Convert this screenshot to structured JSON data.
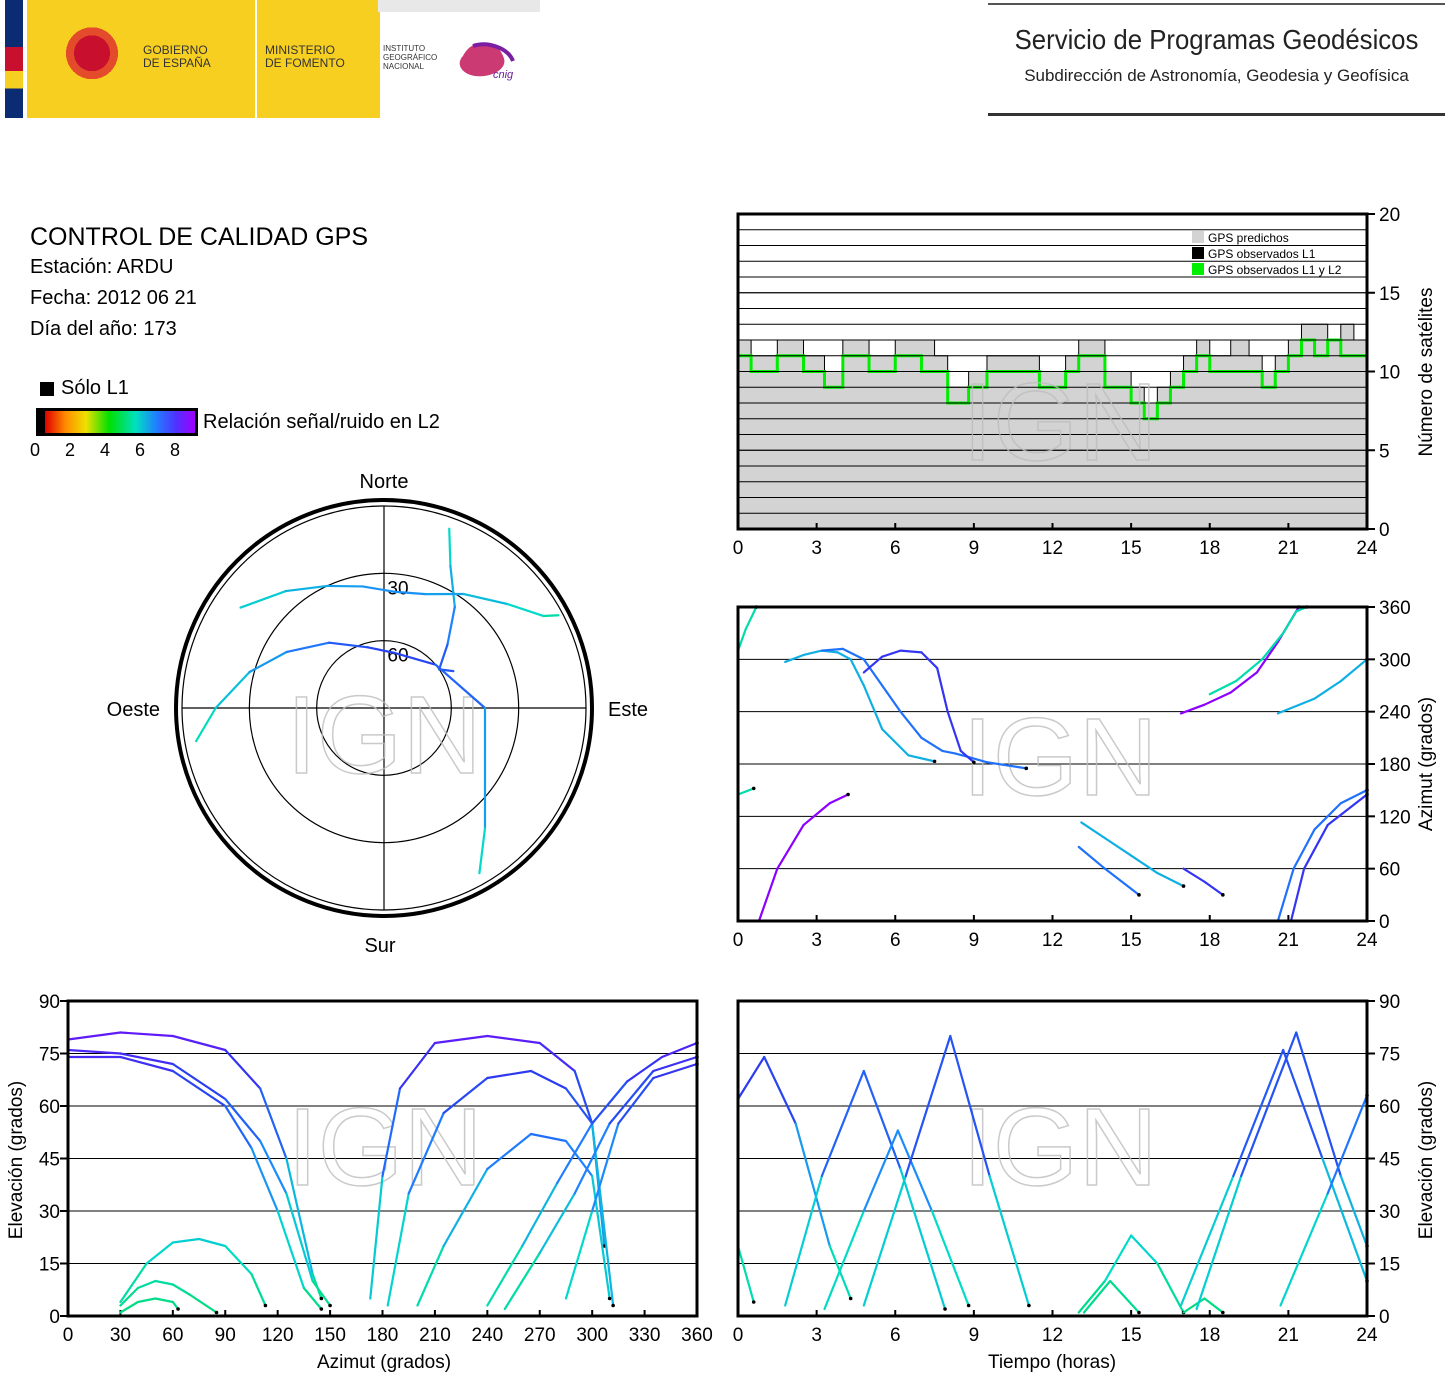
{
  "header": {
    "gov_line1": "GOBIERNO",
    "gov_line2": "DE ESPAÑA",
    "min_line1": "MINISTERIO",
    "min_line2": "DE FOMENTO",
    "ign_line1": "INSTITUTO",
    "ign_line2": "GEOGRÁFICO",
    "ign_line3": "NACIONAL",
    "cnig_logo": "cnig",
    "service_title": "Servicio de Programas Geodésicos",
    "service_subtitle": "Subdirección de Astronomía, Geodesia y Geofísica"
  },
  "info": {
    "title": "CONTROL DE CALIDAD GPS",
    "station": "Estación: ARDU",
    "date": "Fecha: 2012 06 21",
    "doy": "Día del año: 173",
    "legend_l1": "Sólo L1",
    "colorbar_label": "Relación señal/ruido en L2",
    "colorbar_ticks": [
      "0",
      "2",
      "4",
      "6",
      "8"
    ]
  },
  "watermark": "IGN",
  "colors": {
    "predicted": "#d3d3d3",
    "observed_l1": "#000000",
    "observed_l1l2": "#00ee00"
  },
  "chart_data": [
    {
      "type": "area",
      "name": "satellites",
      "x_ticks": [
        "0",
        "3",
        "6",
        "9",
        "12",
        "15",
        "18",
        "21",
        "24"
      ],
      "y_ticks": [
        "0",
        "5",
        "10",
        "15",
        "20"
      ],
      "ylabel": "Número de satélites",
      "xlim": [
        0,
        24
      ],
      "ylim": [
        0,
        20
      ],
      "legend": [
        "GPS predichos",
        "GPS observados L1",
        "GPS observados L1 y L2"
      ],
      "legend_position": "top-right",
      "series": [
        {
          "name": "GPS predichos",
          "x": [
            0,
            0.5,
            1.5,
            2.5,
            3.3,
            4,
            5,
            6,
            7,
            7.5,
            8,
            8.8,
            9.5,
            10.5,
            11.5,
            12.5,
            13,
            14,
            15,
            15.5,
            16,
            16.5,
            17,
            17.5,
            18,
            18.8,
            19.5,
            20,
            20.5,
            21,
            21.5,
            22,
            22.5,
            23,
            23.5,
            24
          ],
          "y": [
            12,
            11,
            12,
            11,
            10,
            12,
            11,
            12,
            12,
            11,
            9,
            10,
            11,
            11,
            10,
            11,
            12,
            10,
            9,
            8,
            9,
            10,
            11,
            12,
            11,
            12,
            11,
            10,
            11,
            12,
            13,
            13,
            12,
            13,
            12,
            12
          ]
        },
        {
          "name": "GPS observados L1 y L2",
          "x": [
            0,
            0.5,
            1.5,
            2.5,
            3.3,
            4,
            5,
            6,
            7,
            7.5,
            8,
            8.8,
            9.5,
            10.5,
            11.5,
            12.5,
            13,
            14,
            15,
            15.5,
            16,
            16.5,
            17,
            17.5,
            18,
            18.8,
            19.5,
            20,
            20.5,
            21,
            21.5,
            22,
            22.5,
            23,
            23.5,
            24
          ],
          "y": [
            11,
            10,
            11,
            10,
            9,
            11,
            10,
            11,
            10,
            10,
            8,
            9,
            10,
            10,
            9,
            10,
            11,
            9,
            8,
            7,
            8,
            9,
            10,
            11,
            10,
            10,
            10,
            9,
            10,
            11,
            12,
            11,
            12,
            11,
            11,
            11
          ]
        }
      ]
    },
    {
      "type": "scatter",
      "name": "skyplot",
      "direction_labels": [
        "Norte",
        "Este",
        "Sur",
        "Oeste"
      ],
      "ring_labels": [
        "30",
        "60"
      ],
      "series": [
        {
          "az": [
            20,
            25,
            35,
            45,
            55,
            62
          ],
          "el": [
            5,
            20,
            35,
            50,
            60,
            55
          ]
        },
        {
          "az": [
            305,
            320,
            335,
            350,
            5,
            20,
            35,
            50,
            60,
            62
          ],
          "el": [
            12,
            22,
            30,
            35,
            38,
            36,
            28,
            18,
            8,
            2
          ]
        },
        {
          "az": [
            260,
            270,
            285,
            300,
            320,
            345,
            10,
            50,
            90,
            140,
            150
          ],
          "el": [
            5,
            15,
            28,
            40,
            52,
            62,
            65,
            60,
            45,
            20,
            5
          ]
        }
      ]
    },
    {
      "type": "line",
      "name": "azimuth_vs_time",
      "x_ticks": [
        "0",
        "3",
        "6",
        "9",
        "12",
        "15",
        "18",
        "21",
        "24"
      ],
      "y_ticks": [
        "0",
        "60",
        "120",
        "180",
        "240",
        "300",
        "360"
      ],
      "ylabel": "Azimut (grados)",
      "xlim": [
        0,
        24
      ],
      "ylim": [
        0,
        360
      ],
      "series": [
        {
          "x": [
            0,
            0.3,
            0.7
          ],
          "y": [
            310,
            335,
            360
          ]
        },
        {
          "x": [
            1.8,
            2.5,
            3.2,
            3.8,
            4.3,
            4.8,
            5.5,
            6.5,
            7.5
          ],
          "y": [
            297,
            305,
            310,
            308,
            300,
            270,
            220,
            190,
            183
          ]
        },
        {
          "x": [
            3.2,
            4,
            4.8,
            5.5,
            6.2,
            7,
            7.8,
            8.3,
            8.8,
            9.5,
            11
          ],
          "y": [
            310,
            312,
            300,
            270,
            240,
            210,
            195,
            192,
            188,
            182,
            175
          ]
        },
        {
          "x": [
            4.8,
            5.5,
            6.2,
            7,
            7.6,
            8,
            8.5,
            9
          ],
          "y": [
            285,
            303,
            310,
            308,
            290,
            240,
            195,
            182
          ]
        },
        {
          "x": [
            0.8,
            1.5,
            2.5,
            3.5,
            4.2
          ],
          "y": [
            0,
            60,
            110,
            135,
            145
          ]
        },
        {
          "x": [
            0,
            0.6
          ],
          "y": [
            145,
            152
          ]
        },
        {
          "x": [
            13.1,
            14,
            15,
            16,
            17
          ],
          "y": [
            113,
            95,
            75,
            55,
            40
          ]
        },
        {
          "x": [
            13,
            14,
            15.3
          ],
          "y": [
            85,
            60,
            30
          ]
        },
        {
          "x": [
            17,
            17.8,
            18.5
          ],
          "y": [
            60,
            45,
            30
          ]
        },
        {
          "x": [
            16.9,
            17.8,
            18.8,
            19.8,
            20.6,
            21.4
          ],
          "y": [
            238,
            248,
            262,
            285,
            320,
            360
          ]
        },
        {
          "x": [
            18,
            19,
            20,
            20.8,
            21.3,
            21.7
          ],
          "y": [
            260,
            275,
            300,
            330,
            355,
            360
          ]
        },
        {
          "x": [
            20.6,
            22,
            23,
            24
          ],
          "y": [
            238,
            255,
            275,
            300
          ]
        },
        {
          "x": [
            20.6,
            21.2,
            22,
            23,
            24
          ],
          "y": [
            0,
            60,
            105,
            135,
            150
          ]
        },
        {
          "x": [
            21.1,
            21.6,
            22.5,
            24
          ],
          "y": [
            0,
            60,
            110,
            145
          ]
        }
      ]
    },
    {
      "type": "line",
      "name": "elevation_vs_azimuth",
      "x_ticks": [
        "0",
        "30",
        "60",
        "90",
        "120",
        "150",
        "180",
        "210",
        "240",
        "270",
        "300",
        "330",
        "360"
      ],
      "y_ticks": [
        "0",
        "15",
        "30",
        "45",
        "60",
        "75",
        "90"
      ],
      "xlabel": "Azimut (grados)",
      "ylabel": "Elevación (grados)",
      "xlim": [
        0,
        360
      ],
      "ylim": [
        0,
        90
      ],
      "series": [
        {
          "x": [
            0,
            30,
            60,
            90,
            110,
            125,
            140,
            145
          ],
          "y": [
            79,
            81,
            80,
            76,
            65,
            45,
            12,
            5
          ]
        },
        {
          "x": [
            0,
            30,
            60,
            90,
            110,
            125,
            140,
            150
          ],
          "y": [
            76,
            75,
            72,
            62,
            50,
            35,
            10,
            3
          ]
        },
        {
          "x": [
            0,
            30,
            60,
            90,
            105,
            120,
            135,
            145
          ],
          "y": [
            74,
            74,
            70,
            60,
            48,
            30,
            8,
            2
          ]
        },
        {
          "x": [
            30,
            45,
            60,
            75,
            90,
            105,
            113
          ],
          "y": [
            4,
            15,
            21,
            22,
            20,
            12,
            3
          ]
        },
        {
          "x": [
            30,
            40,
            50,
            60,
            70,
            85
          ],
          "y": [
            3,
            8,
            10,
            9,
            6,
            1
          ]
        },
        {
          "x": [
            30,
            40,
            50,
            60,
            63
          ],
          "y": [
            1,
            4,
            5,
            4,
            2
          ]
        },
        {
          "x": [
            173,
            180,
            190,
            210,
            240,
            270,
            290,
            300,
            307
          ],
          "y": [
            5,
            40,
            65,
            78,
            80,
            78,
            70,
            55,
            20
          ]
        },
        {
          "x": [
            183,
            195,
            215,
            240,
            265,
            285,
            300,
            312
          ],
          "y": [
            3,
            35,
            58,
            68,
            70,
            65,
            55,
            3
          ]
        },
        {
          "x": [
            200,
            215,
            240,
            265,
            285,
            300,
            310
          ],
          "y": [
            3,
            20,
            42,
            52,
            50,
            40,
            5
          ]
        },
        {
          "x": [
            240,
            260,
            280,
            300,
            320,
            340,
            360
          ],
          "y": [
            3,
            20,
            38,
            55,
            67,
            74,
            78
          ]
        },
        {
          "x": [
            250,
            270,
            290,
            310,
            335,
            360
          ],
          "y": [
            2,
            18,
            35,
            55,
            70,
            74
          ]
        },
        {
          "x": [
            285,
            300,
            315,
            335,
            360
          ],
          "y": [
            5,
            30,
            55,
            68,
            72
          ]
        }
      ]
    },
    {
      "type": "line",
      "name": "elevation_vs_time",
      "x_ticks": [
        "0",
        "3",
        "6",
        "9",
        "12",
        "15",
        "18",
        "21",
        "24"
      ],
      "y_ticks": [
        "0",
        "15",
        "30",
        "45",
        "60",
        "75",
        "90"
      ],
      "xlabel": "Tiempo (horas)",
      "ylabel": "Elevación (grados)",
      "xlim": [
        0,
        24
      ],
      "ylim": [
        0,
        90
      ],
      "series": [
        {
          "x": [
            0,
            1,
            2.2,
            3.5,
            4.3
          ],
          "y": [
            62,
            74,
            55,
            20,
            5
          ]
        },
        {
          "x": [
            0,
            0.6
          ],
          "y": [
            20,
            4
          ]
        },
        {
          "x": [
            1.8,
            3.2,
            4.8,
            6.2,
            7.9
          ],
          "y": [
            3,
            40,
            70,
            42,
            2
          ]
        },
        {
          "x": [
            3.3,
            4.8,
            6.1,
            7.4,
            8.8
          ],
          "y": [
            2,
            30,
            53,
            30,
            3
          ]
        },
        {
          "x": [
            4.8,
            6.4,
            8.1,
            9.6,
            11.1
          ],
          "y": [
            3,
            40,
            80,
            40,
            3
          ]
        },
        {
          "x": [
            13,
            14,
            15,
            16,
            17
          ],
          "y": [
            1,
            10,
            23,
            15,
            1
          ]
        },
        {
          "x": [
            13.2,
            14.2,
            15.3
          ],
          "y": [
            1,
            10,
            1
          ]
        },
        {
          "x": [
            17,
            17.8,
            18.5
          ],
          "y": [
            1,
            5,
            1
          ]
        },
        {
          "x": [
            16.9,
            18.9,
            20.8,
            22.3,
            24
          ],
          "y": [
            3,
            40,
            76,
            45,
            10
          ]
        },
        {
          "x": [
            17.5,
            19.2,
            21.3,
            23,
            24
          ],
          "y": [
            2,
            40,
            81,
            40,
            20
          ]
        },
        {
          "x": [
            20.7,
            22.5,
            24
          ],
          "y": [
            3,
            35,
            63
          ]
        }
      ]
    }
  ]
}
